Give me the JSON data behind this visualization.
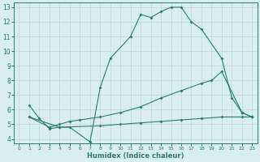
{
  "line1_x": [
    1,
    2,
    3,
    4,
    5,
    7,
    8,
    9,
    11,
    12,
    13,
    14,
    15,
    16,
    17,
    18,
    20,
    21,
    22,
    23
  ],
  "line1_y": [
    6.3,
    5.4,
    4.7,
    4.8,
    4.8,
    3.8,
    7.5,
    9.5,
    11.0,
    12.5,
    12.3,
    12.7,
    13.0,
    13.0,
    12.0,
    11.5,
    9.5,
    6.8,
    5.8,
    5.5
  ],
  "line2_x": [
    1,
    3,
    4,
    5,
    6,
    8,
    10,
    12,
    14,
    16,
    18,
    19,
    20,
    22,
    23
  ],
  "line2_y": [
    5.5,
    4.8,
    5.0,
    5.2,
    5.3,
    5.5,
    5.8,
    6.2,
    6.8,
    7.3,
    7.8,
    8.0,
    8.6,
    5.8,
    5.5
  ],
  "line3_x": [
    1,
    4,
    8,
    10,
    12,
    14,
    16,
    18,
    20,
    22,
    23
  ],
  "line3_y": [
    5.5,
    4.8,
    4.9,
    5.0,
    5.1,
    5.2,
    5.3,
    5.4,
    5.5,
    5.5,
    5.5
  ],
  "color": "#2e7d6e",
  "bg_color": "#d8eef0",
  "grid_color": "#c0d8da",
  "grid_minor_color": "#e0ecee",
  "xlabel": "Humidex (Indice chaleur)",
  "xlim": [
    -0.5,
    23.5
  ],
  "ylim": [
    3.7,
    13.3
  ],
  "xticks": [
    0,
    1,
    2,
    3,
    4,
    5,
    6,
    7,
    8,
    9,
    10,
    11,
    12,
    13,
    14,
    15,
    16,
    17,
    18,
    19,
    20,
    21,
    22,
    23
  ],
  "yticks": [
    4,
    5,
    6,
    7,
    8,
    9,
    10,
    11,
    12,
    13
  ]
}
